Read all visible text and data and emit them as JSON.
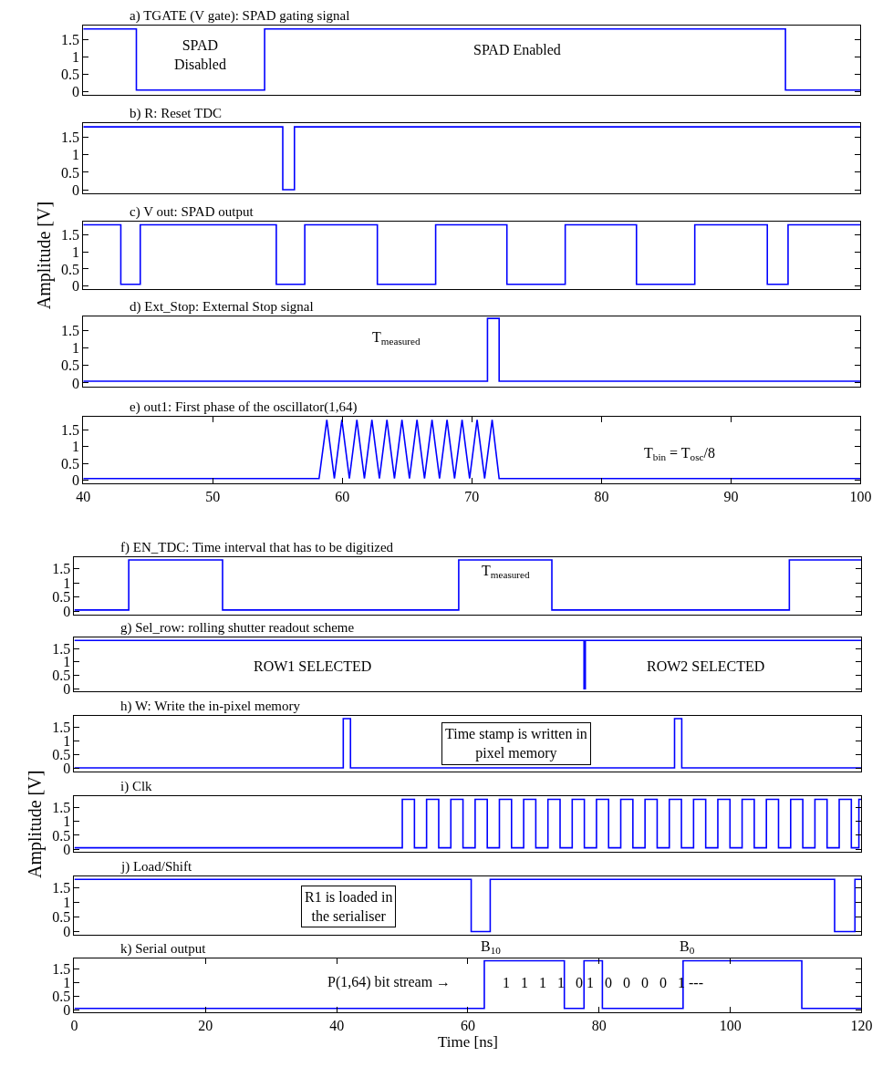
{
  "chart_data": [
    {
      "type": "step",
      "title": "a) TGATE (V gate): SPAD gating signal",
      "x": [
        40,
        44.1,
        54,
        94.2,
        100
      ],
      "series": [
        {
          "color": "#0000ff",
          "values": [
            1.8,
            0.05,
            1.8,
            0.05,
            0.05
          ]
        }
      ],
      "xlim": [
        40,
        100
      ],
      "ylim": [
        -0.1,
        1.9
      ],
      "yticks": [
        0,
        0.5,
        1,
        1.5
      ],
      "tick_labels": "y",
      "annotations": [
        "SPAD\nDisabled",
        "SPAD Enabled"
      ]
    },
    {
      "type": "step",
      "title": "b) R: Reset TDC",
      "x": [
        40,
        55.4,
        56.3,
        100
      ],
      "series": [
        {
          "color": "#0000ff",
          "values": [
            1.8,
            0,
            1.8,
            1.8
          ]
        }
      ],
      "xlim": [
        40,
        100
      ],
      "ylim": [
        -0.1,
        1.9
      ],
      "yticks": [
        0,
        0.5,
        1,
        1.5
      ],
      "tick_labels": "y"
    },
    {
      "type": "step",
      "title": "c) V out: SPAD output",
      "ylabel": "Amplitude [V]",
      "x": [
        40,
        42.9,
        44.4,
        54.9,
        57.1,
        62.7,
        67.2,
        72.7,
        77.2,
        82.7,
        87.2,
        92.8,
        94.4,
        100
      ],
      "series": [
        {
          "color": "#0000ff",
          "values": [
            1.8,
            0.05,
            1.8,
            0.05,
            1.8,
            0.05,
            1.8,
            0.05,
            1.8,
            0.05,
            1.8,
            0.05,
            1.8,
            1.8
          ]
        }
      ],
      "xlim": [
        40,
        100
      ],
      "ylim": [
        -0.1,
        1.9
      ],
      "yticks": [
        0,
        0.5,
        1,
        1.5
      ],
      "tick_labels": "y"
    },
    {
      "type": "step",
      "title": "d) Ext_Stop: External Stop signal",
      "x": [
        40,
        71.2,
        72.1,
        100
      ],
      "series": [
        {
          "color": "#0000ff",
          "values": [
            0.05,
            1.85,
            0.05,
            0.05
          ]
        }
      ],
      "xlim": [
        40,
        100
      ],
      "ylim": [
        -0.1,
        1.9
      ],
      "yticks": [
        0,
        0.5,
        1,
        1.5
      ],
      "tick_labels": "y",
      "annotations": [
        "T$_{measured}$"
      ]
    },
    {
      "type": "line",
      "title": "e) out1: First phase of the oscillator(1,64)",
      "x": [
        40,
        58.2,
        58.8,
        59.38,
        59.96,
        60.54,
        61.12,
        61.7,
        62.28,
        62.86,
        63.44,
        64.02,
        64.6,
        65.18,
        65.76,
        66.34,
        66.92,
        67.5,
        68.08,
        68.66,
        69.24,
        69.82,
        70.4,
        70.98,
        71.56,
        72.1,
        100
      ],
      "series": [
        {
          "color": "#0000ff",
          "values": [
            0.05,
            0.05,
            1.8,
            0.05,
            1.8,
            0.05,
            1.8,
            0.05,
            1.8,
            0.05,
            1.8,
            0.05,
            1.8,
            0.05,
            1.8,
            0.05,
            1.8,
            0.05,
            1.8,
            0.05,
            1.8,
            0.05,
            1.8,
            0.05,
            1.8,
            0.05,
            0.05
          ]
        }
      ],
      "xlim": [
        40,
        100
      ],
      "xticks": [
        40,
        50,
        60,
        70,
        80,
        90,
        100
      ],
      "ylim": [
        -0.1,
        1.9
      ],
      "yticks": [
        0,
        0.5,
        1,
        1.5
      ],
      "annotations": [
        "T$_{bin}$ = T$_{osc}$/8"
      ]
    },
    {
      "type": "step",
      "title": "f) EN_TDC: Time interval that has to be digitized",
      "x": [
        0,
        8.3,
        22.6,
        58.6,
        72.8,
        109,
        120
      ],
      "series": [
        {
          "color": "#0000ff",
          "values": [
            0.05,
            1.8,
            0.05,
            1.8,
            0.05,
            1.8,
            1.8
          ]
        }
      ],
      "xlim": [
        0,
        120
      ],
      "ylim": [
        -0.1,
        1.9
      ],
      "yticks": [
        0,
        0.5,
        1,
        1.5
      ],
      "tick_labels": "y",
      "annotations": [
        "T$_{measured}$"
      ]
    },
    {
      "type": "step",
      "title": "g) Sel_row: rolling shutter readout scheme",
      "x": [
        0,
        77.7,
        77.9,
        120
      ],
      "series": [
        {
          "color": "#0000ff",
          "values": [
            1.8,
            0,
            1.8,
            1.8
          ]
        }
      ],
      "xlim": [
        0,
        120
      ],
      "ylim": [
        -0.1,
        1.9
      ],
      "yticks": [
        0,
        0.5,
        1,
        1.5
      ],
      "tick_labels": "y",
      "annotations": [
        "ROW1 SELECTED",
        "ROW2 SELECTED"
      ]
    },
    {
      "type": "step",
      "title": "h) W: Write the in-pixel memory",
      "x": [
        0,
        41,
        42.1,
        91.5,
        92.6,
        120
      ],
      "series": [
        {
          "color": "#0000ff",
          "values": [
            0.02,
            1.8,
            0.02,
            1.8,
            0.02,
            0.02
          ]
        }
      ],
      "xlim": [
        0,
        120
      ],
      "ylim": [
        -0.1,
        1.9
      ],
      "yticks": [
        0,
        0.5,
        1,
        1.5
      ],
      "tick_labels": "y",
      "annotations": [
        "Time stamp is written in\npixel memory"
      ]
    },
    {
      "type": "step",
      "title": "i) Clk",
      "ylabel": "Amplitude [V]",
      "x": [
        0,
        50,
        51.85,
        53.7,
        55.55,
        57.4,
        59.25,
        61.1,
        62.95,
        64.8,
        66.65,
        68.5,
        70.35,
        72.2,
        74.05,
        75.9,
        77.75,
        79.6,
        81.45,
        83.3,
        85.15,
        87,
        88.85,
        90.7,
        92.55,
        94.4,
        96.25,
        98.1,
        99.95,
        101.8,
        103.65,
        105.5,
        107.35,
        109.2,
        111.05,
        112.9,
        114.75,
        116.6,
        118.45,
        119.6,
        120
      ],
      "series": [
        {
          "color": "#0000ff",
          "values": [
            0.05,
            1.8,
            0.05,
            1.8,
            0.05,
            1.8,
            0.05,
            1.8,
            0.05,
            1.8,
            0.05,
            1.8,
            0.05,
            1.8,
            0.05,
            1.8,
            0.05,
            1.8,
            0.05,
            1.8,
            0.05,
            1.8,
            0.05,
            1.8,
            0.05,
            1.8,
            0.05,
            1.8,
            0.05,
            1.8,
            0.05,
            1.8,
            0.05,
            1.8,
            0.05,
            1.8,
            0.05,
            1.8,
            0.05,
            1.8,
            1.8
          ]
        }
      ],
      "xlim": [
        0,
        120
      ],
      "ylim": [
        -0.1,
        1.9
      ],
      "yticks": [
        0,
        0.5,
        1,
        1.5
      ],
      "tick_labels": "y"
    },
    {
      "type": "step",
      "title": "j) Load/Shift",
      "x": [
        0,
        60.5,
        63.4,
        115.9,
        119,
        120
      ],
      "series": [
        {
          "color": "#0000ff",
          "values": [
            1.8,
            0,
            1.8,
            0,
            1.8,
            1.8
          ]
        }
      ],
      "xlim": [
        0,
        120
      ],
      "ylim": [
        -0.1,
        1.9
      ],
      "yticks": [
        0,
        0.5,
        1,
        1.5
      ],
      "tick_labels": "y",
      "annotations": [
        "R1 is loaded in\nthe serialiser"
      ]
    },
    {
      "type": "step",
      "title": "k) Serial output",
      "xlabel": "Time [ns]",
      "x": [
        0,
        62.5,
        74.7,
        77.7,
        80.5,
        92.8,
        110.9,
        120
      ],
      "series": [
        {
          "color": "#0000ff",
          "values": [
            0.05,
            1.8,
            0.05,
            1.8,
            0.05,
            1.8,
            0.05,
            0.05
          ]
        }
      ],
      "xlim": [
        0,
        120
      ],
      "xticks": [
        0,
        20,
        40,
        60,
        80,
        100,
        120
      ],
      "ylim": [
        -0.1,
        1.9
      ],
      "yticks": [
        0,
        0.5,
        1,
        1.5
      ],
      "annotations": [
        "B$_{10}$",
        "B$_{0}$",
        "P(1,64) bit stream →",
        "1   1   1   1   0 1   0   0   0   0   1 ---"
      ]
    }
  ]
}
